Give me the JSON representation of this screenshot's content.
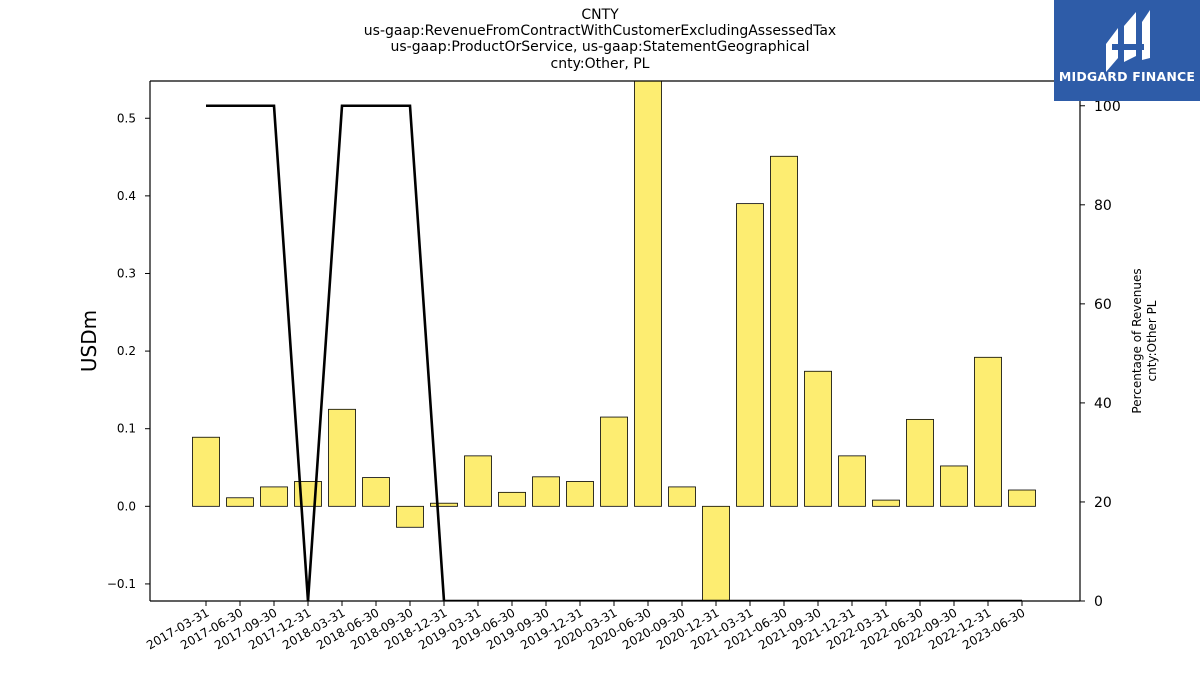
{
  "title_lines": [
    "CNTY",
    "us-gaap:RevenueFromContractWithCustomerExcludingAssessedTax",
    "us-gaap:ProductOrService, us-gaap:StatementGeographical",
    "cnty:Other, PL"
  ],
  "logo": {
    "text": "MIDGARD FINANCE",
    "bg_color": "#2e5ca8",
    "icon": "midgard-logo-icon"
  },
  "colors": {
    "bar_fill": "#fded71",
    "bar_edge": "#000000",
    "line": "#000000"
  },
  "chart_data": {
    "type": "bar",
    "categories": [
      "2017-03-31",
      "2017-06-30",
      "2017-09-30",
      "2017-12-31",
      "2018-03-31",
      "2018-06-30",
      "2018-09-30",
      "2018-12-31",
      "2019-03-31",
      "2019-06-30",
      "2019-09-30",
      "2019-12-31",
      "2020-03-31",
      "2020-06-30",
      "2020-09-30",
      "2020-12-31",
      "2021-03-31",
      "2021-06-30",
      "2021-09-30",
      "2021-12-31",
      "2022-03-31",
      "2022-06-30",
      "2022-09-30",
      "2022-12-31",
      "2023-06-30"
    ],
    "series": [
      {
        "axis": "left",
        "type": "bar",
        "values": [
          0.089,
          0.011,
          0.025,
          0.032,
          0.125,
          0.037,
          -0.027,
          0.004,
          0.065,
          0.018,
          0.038,
          0.032,
          0.115,
          0.55,
          0.025,
          -0.125,
          0.39,
          0.451,
          0.174,
          0.065,
          0.008,
          0.112,
          0.052,
          0.192,
          0.021
        ]
      },
      {
        "axis": "right",
        "type": "line",
        "x_index": [
          0,
          1,
          2,
          3,
          4,
          5,
          6,
          7,
          8,
          9,
          10,
          11,
          12,
          13,
          14,
          15,
          16,
          17,
          18,
          19,
          20,
          21,
          22,
          23,
          24
        ],
        "values": [
          100,
          100,
          100,
          0,
          100,
          100,
          100,
          0,
          0,
          0,
          0,
          0,
          0,
          0,
          0,
          0,
          0,
          0,
          0,
          0,
          0,
          0,
          0,
          0,
          0
        ]
      }
    ],
    "ylabel": "USDm",
    "ylabel_right": [
      "Percentage of Revenues",
      "cnty:Other PL"
    ],
    "ylim": [
      -0.122,
      0.548
    ],
    "ylim_right": [
      0,
      105
    ],
    "yticks": [
      -0.1,
      0.0,
      0.1,
      0.2,
      0.3,
      0.4,
      0.5
    ],
    "yticks_right": [
      0,
      20,
      40,
      60,
      80,
      100
    ],
    "grid": false,
    "legend": "none"
  }
}
